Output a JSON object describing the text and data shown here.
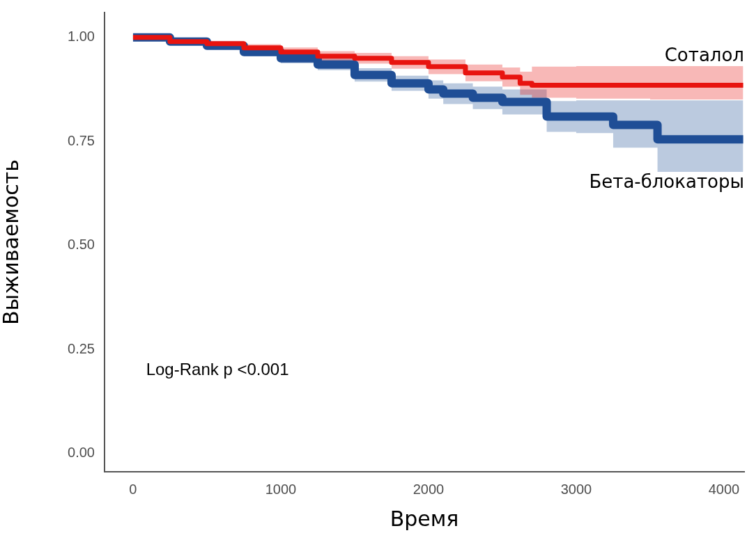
{
  "chart_data": {
    "type": "step",
    "xlabel": "Время",
    "ylabel": "Выживаемость",
    "annotations": [
      "Log-Rank p <0.001"
    ],
    "xlim": [
      -193,
      4137
    ],
    "xticks": [
      0,
      1000,
      2000,
      3000,
      4000
    ],
    "ylim": [
      -0.044,
      1.06
    ],
    "yticks": [
      {
        "value": 0,
        "label": "0.00"
      },
      {
        "value": 0.25,
        "label": "0.25"
      },
      {
        "value": 0.5,
        "label": "0.50"
      },
      {
        "value": 0.75,
        "label": "0.75"
      },
      {
        "value": 1,
        "label": "1.00"
      }
    ],
    "legend": false,
    "series": [
      {
        "name": "Соталол",
        "color": "#e8140f",
        "x": [
          0,
          250,
          500,
          750,
          1000,
          1250,
          1500,
          1750,
          2000,
          2250,
          2500,
          2620,
          2700,
          3000,
          3500,
          4130
        ],
        "values": [
          1.0,
          0.99,
          0.985,
          0.975,
          0.965,
          0.955,
          0.95,
          0.94,
          0.93,
          0.915,
          0.905,
          0.89,
          0.885,
          0.885,
          0.885,
          0.885
        ],
        "lower": [
          1.0,
          0.985,
          0.978,
          0.966,
          0.955,
          0.944,
          0.937,
          0.925,
          0.912,
          0.895,
          0.882,
          0.862,
          0.855,
          0.853,
          0.851,
          0.851
        ],
        "upper": [
          1.0,
          0.995,
          0.992,
          0.984,
          0.976,
          0.967,
          0.963,
          0.955,
          0.947,
          0.935,
          0.928,
          0.918,
          0.93,
          0.931,
          0.931,
          0.931
        ]
      },
      {
        "name": "Бета-блокаторы",
        "color": "#1f4e96",
        "x": [
          0,
          250,
          500,
          750,
          1000,
          1250,
          1500,
          1750,
          2000,
          2100,
          2300,
          2500,
          2800,
          3000,
          3250,
          3550,
          4130
        ],
        "values": [
          1.0,
          0.99,
          0.98,
          0.965,
          0.95,
          0.935,
          0.91,
          0.89,
          0.875,
          0.865,
          0.855,
          0.845,
          0.81,
          0.81,
          0.79,
          0.755,
          0.755
        ],
        "lower": [
          1.0,
          0.984,
          0.972,
          0.955,
          0.938,
          0.921,
          0.894,
          0.872,
          0.853,
          0.84,
          0.828,
          0.815,
          0.773,
          0.77,
          0.735,
          0.677,
          0.677
        ],
        "upper": [
          1.0,
          0.996,
          0.988,
          0.975,
          0.962,
          0.949,
          0.926,
          0.908,
          0.897,
          0.89,
          0.882,
          0.875,
          0.847,
          0.849,
          0.849,
          0.849,
          0.849
        ]
      }
    ]
  }
}
